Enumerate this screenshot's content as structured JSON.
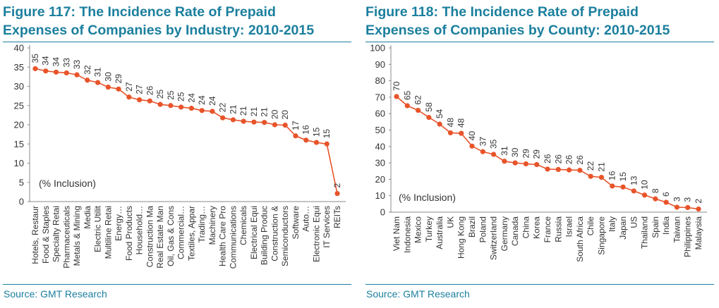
{
  "left": {
    "title_line1": "Figure 117: The Incidence Rate of Prepaid",
    "title_line2": "Expenses of Companies by Industry: 2010-2015",
    "source": "Source: GMT Research"
  },
  "right": {
    "title_line1": "Figure 118: The Incidence Rate of Prepaid",
    "title_line2": "Expenses of Companies by County: 2010-2015",
    "source": "Source: GMT Research"
  },
  "colors": {
    "accent": "#1b7f9e",
    "series": "#e8542a",
    "text": "#333333",
    "axis": "#888888"
  },
  "chart_data": [
    {
      "type": "line",
      "title": "Figure 117: The Incidence Rate of Prepaid Expenses of Companies by Industry: 2010-2015",
      "annotation": "(% Inclusion)",
      "ylim": [
        0,
        40
      ],
      "yticks": [
        0,
        5,
        10,
        15,
        20,
        25,
        30,
        35,
        40
      ],
      "categories": [
        "Hotels, Restaur",
        "Food & Staples",
        "Specialty Retai",
        "Pharmaceuticals",
        "Metals & Mining",
        "Media",
        "Electric Utilit",
        "Multiline Retai",
        "Energy…",
        "Food Products",
        "Household…",
        "Construction Ma",
        "Real Estate Man",
        "Oil, Gas & Cons",
        "Commercial…",
        "Textiles, Appar",
        "Trading…",
        "Machinery",
        "Health Care Pro",
        "Communications",
        "Chemicals",
        "Electrical Equi",
        "Building Produc",
        "Construction &",
        "Semiconductors",
        "Software",
        "Auto…",
        "Electronic Equi",
        "IT Services",
        "REITs"
      ],
      "values": [
        34.6,
        34.0,
        33.7,
        33.5,
        33.0,
        31.6,
        31.0,
        29.8,
        29.3,
        27.2,
        26.5,
        26.2,
        25.3,
        25.0,
        24.6,
        24.3,
        23.7,
        23.5,
        21.8,
        21.3,
        20.9,
        20.7,
        20.6,
        20.0,
        19.9,
        17.1,
        16.0,
        15.4,
        15.0,
        2.1
      ],
      "labels": [
        "35",
        "34",
        "34",
        "33",
        "33",
        "32",
        "31",
        "30",
        "29",
        "27",
        "27",
        "26",
        "25",
        "25",
        "25",
        "24",
        "24",
        "24",
        "22",
        "21",
        "21",
        "21",
        "21",
        "20",
        "20",
        "17",
        "16",
        "15",
        "15",
        "2"
      ]
    },
    {
      "type": "line",
      "title": "Figure 118: The Incidence Rate of Prepaid Expenses of Companies by County: 2010-2015",
      "annotation": "(% Inclusion)",
      "ylim": [
        0,
        100
      ],
      "yticks": [
        0,
        10,
        20,
        30,
        40,
        50,
        60,
        70,
        80,
        90,
        100
      ],
      "categories": [
        "Viet Nam",
        "Indonesia",
        "Mexico",
        "Turkey",
        "Australia",
        "UK",
        "Hong Kong",
        "Brazil",
        "Poland",
        "Switzerland",
        "Germany",
        "Canada",
        "China",
        "Korea",
        "France",
        "Russia",
        "Israel",
        "South Africa",
        "Chile",
        "Singapore",
        "Italy",
        "Japan",
        "US",
        "Thailand",
        "Spain",
        "India",
        "Taiwan",
        "Philippines",
        "Malaysia"
      ],
      "values": [
        70.4,
        64.8,
        62.0,
        57.7,
        53.6,
        48.3,
        48.0,
        40.2,
        36.8,
        35.2,
        31.0,
        30.0,
        29.4,
        29.0,
        26.2,
        26.0,
        25.7,
        25.5,
        21.8,
        21.2,
        15.9,
        15.3,
        12.9,
        10.4,
        8.1,
        6.0,
        3.0,
        2.8,
        1.9
      ],
      "labels": [
        "70",
        "65",
        "62",
        "58",
        "54",
        "48",
        "48",
        "40",
        "37",
        "35",
        "31",
        "30",
        "29",
        "29",
        "26",
        "26",
        "26",
        "26",
        "22",
        "21",
        "16",
        "15",
        "13",
        "10",
        "8",
        "6",
        "3",
        "3",
        "2"
      ]
    }
  ]
}
